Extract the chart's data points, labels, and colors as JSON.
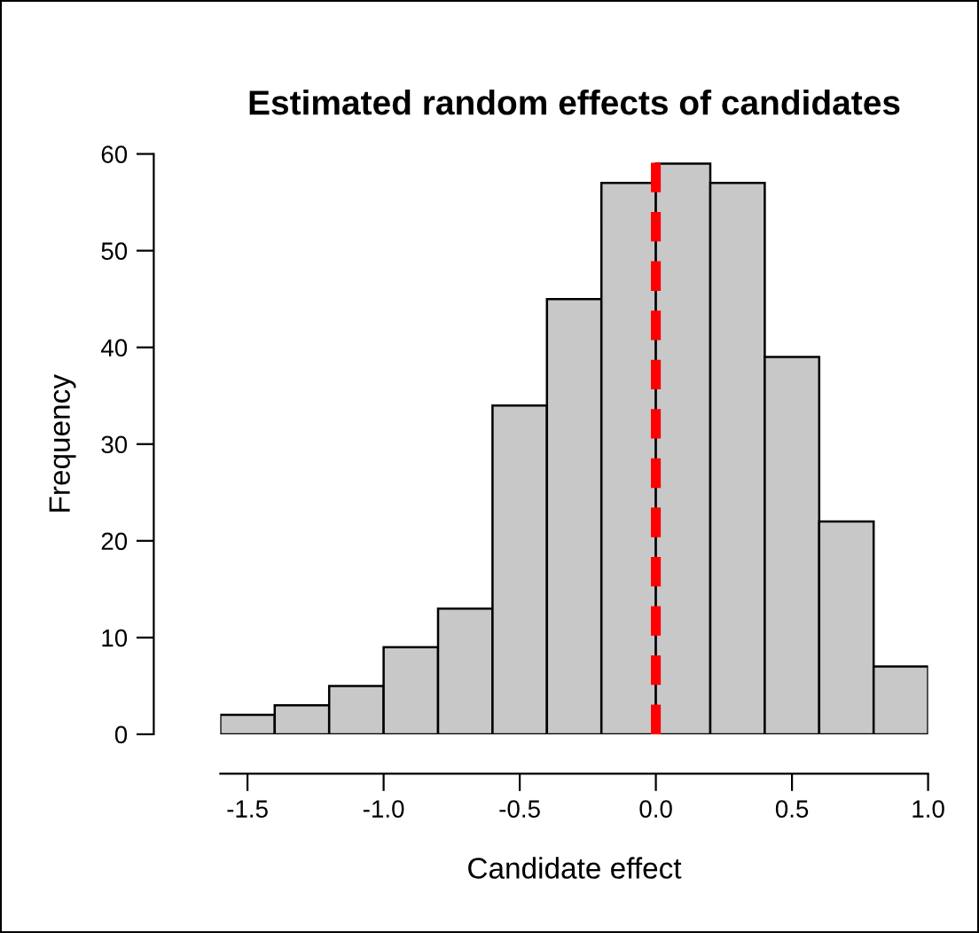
{
  "chart_data": {
    "type": "histogram",
    "title": "Estimated random effects of candidates",
    "xlabel": "Candidate effect",
    "ylabel": "Frequency",
    "bins": [
      -1.6,
      -1.4,
      -1.2,
      -1.0,
      -0.8,
      -0.6,
      -0.4,
      -0.2,
      0.0,
      0.2,
      0.4,
      0.6,
      0.8,
      1.0
    ],
    "values": [
      2,
      3,
      5,
      9,
      13,
      34,
      45,
      57,
      59,
      57,
      39,
      22,
      7
    ],
    "color": "#c8c8c8",
    "xlim": [
      -1.6,
      1.0
    ],
    "ylim": [
      0,
      60
    ],
    "xticks": [
      -1.5,
      {
        "value": -1.0,
        "label": "-1.0"
      },
      -0.5,
      {
        "value": 0.0,
        "label": "0.0"
      },
      0.5,
      {
        "value": 1.0,
        "label": "1.0"
      }
    ],
    "yticks": [
      0,
      10,
      20,
      30,
      40,
      50,
      60
    ],
    "ref_lines": [
      {
        "axis": "x",
        "value": 0.0,
        "color": "#ff0000",
        "line_style": "dashed"
      }
    ],
    "grid": false,
    "legend": false
  }
}
